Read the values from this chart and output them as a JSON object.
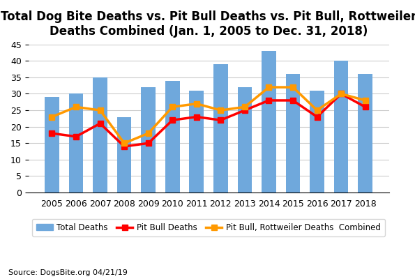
{
  "years": [
    2005,
    2006,
    2007,
    2008,
    2009,
    2010,
    2011,
    2012,
    2013,
    2014,
    2015,
    2016,
    2017,
    2018
  ],
  "total_deaths": [
    29,
    30,
    35,
    23,
    32,
    34,
    31,
    39,
    32,
    43,
    36,
    31,
    40,
    36
  ],
  "pit_bull_deaths": [
    18,
    17,
    21,
    14,
    15,
    22,
    23,
    22,
    25,
    28,
    28,
    23,
    30,
    26
  ],
  "pit_bull_rottweiler": [
    23,
    26,
    25,
    15,
    18,
    26,
    27,
    25,
    26,
    32,
    32,
    25,
    30,
    28
  ],
  "bar_color": "#6fa8dc",
  "pit_bull_color": "#ff0000",
  "combined_color": "#ff9900",
  "title": "Total Dog Bite Deaths vs. Pit Bull Deaths vs. Pit Bull, Rottweiler\nDeaths Combined (Jan. 1, 2005 to Dec. 31, 2018)",
  "ylim": [
    0,
    45
  ],
  "yticks": [
    0,
    5,
    10,
    15,
    20,
    25,
    30,
    35,
    40,
    45
  ],
  "source_text": "Source: DogsBite.org 04/21/19",
  "legend_total": "Total Deaths",
  "legend_pit": "Pit Bull Deaths",
  "legend_combined": "Pit Bull, Rottweiler Deaths  Combined",
  "background_color": "#ffffff",
  "title_fontsize": 12,
  "marker": "s",
  "linewidth": 2.5,
  "markersize": 6
}
